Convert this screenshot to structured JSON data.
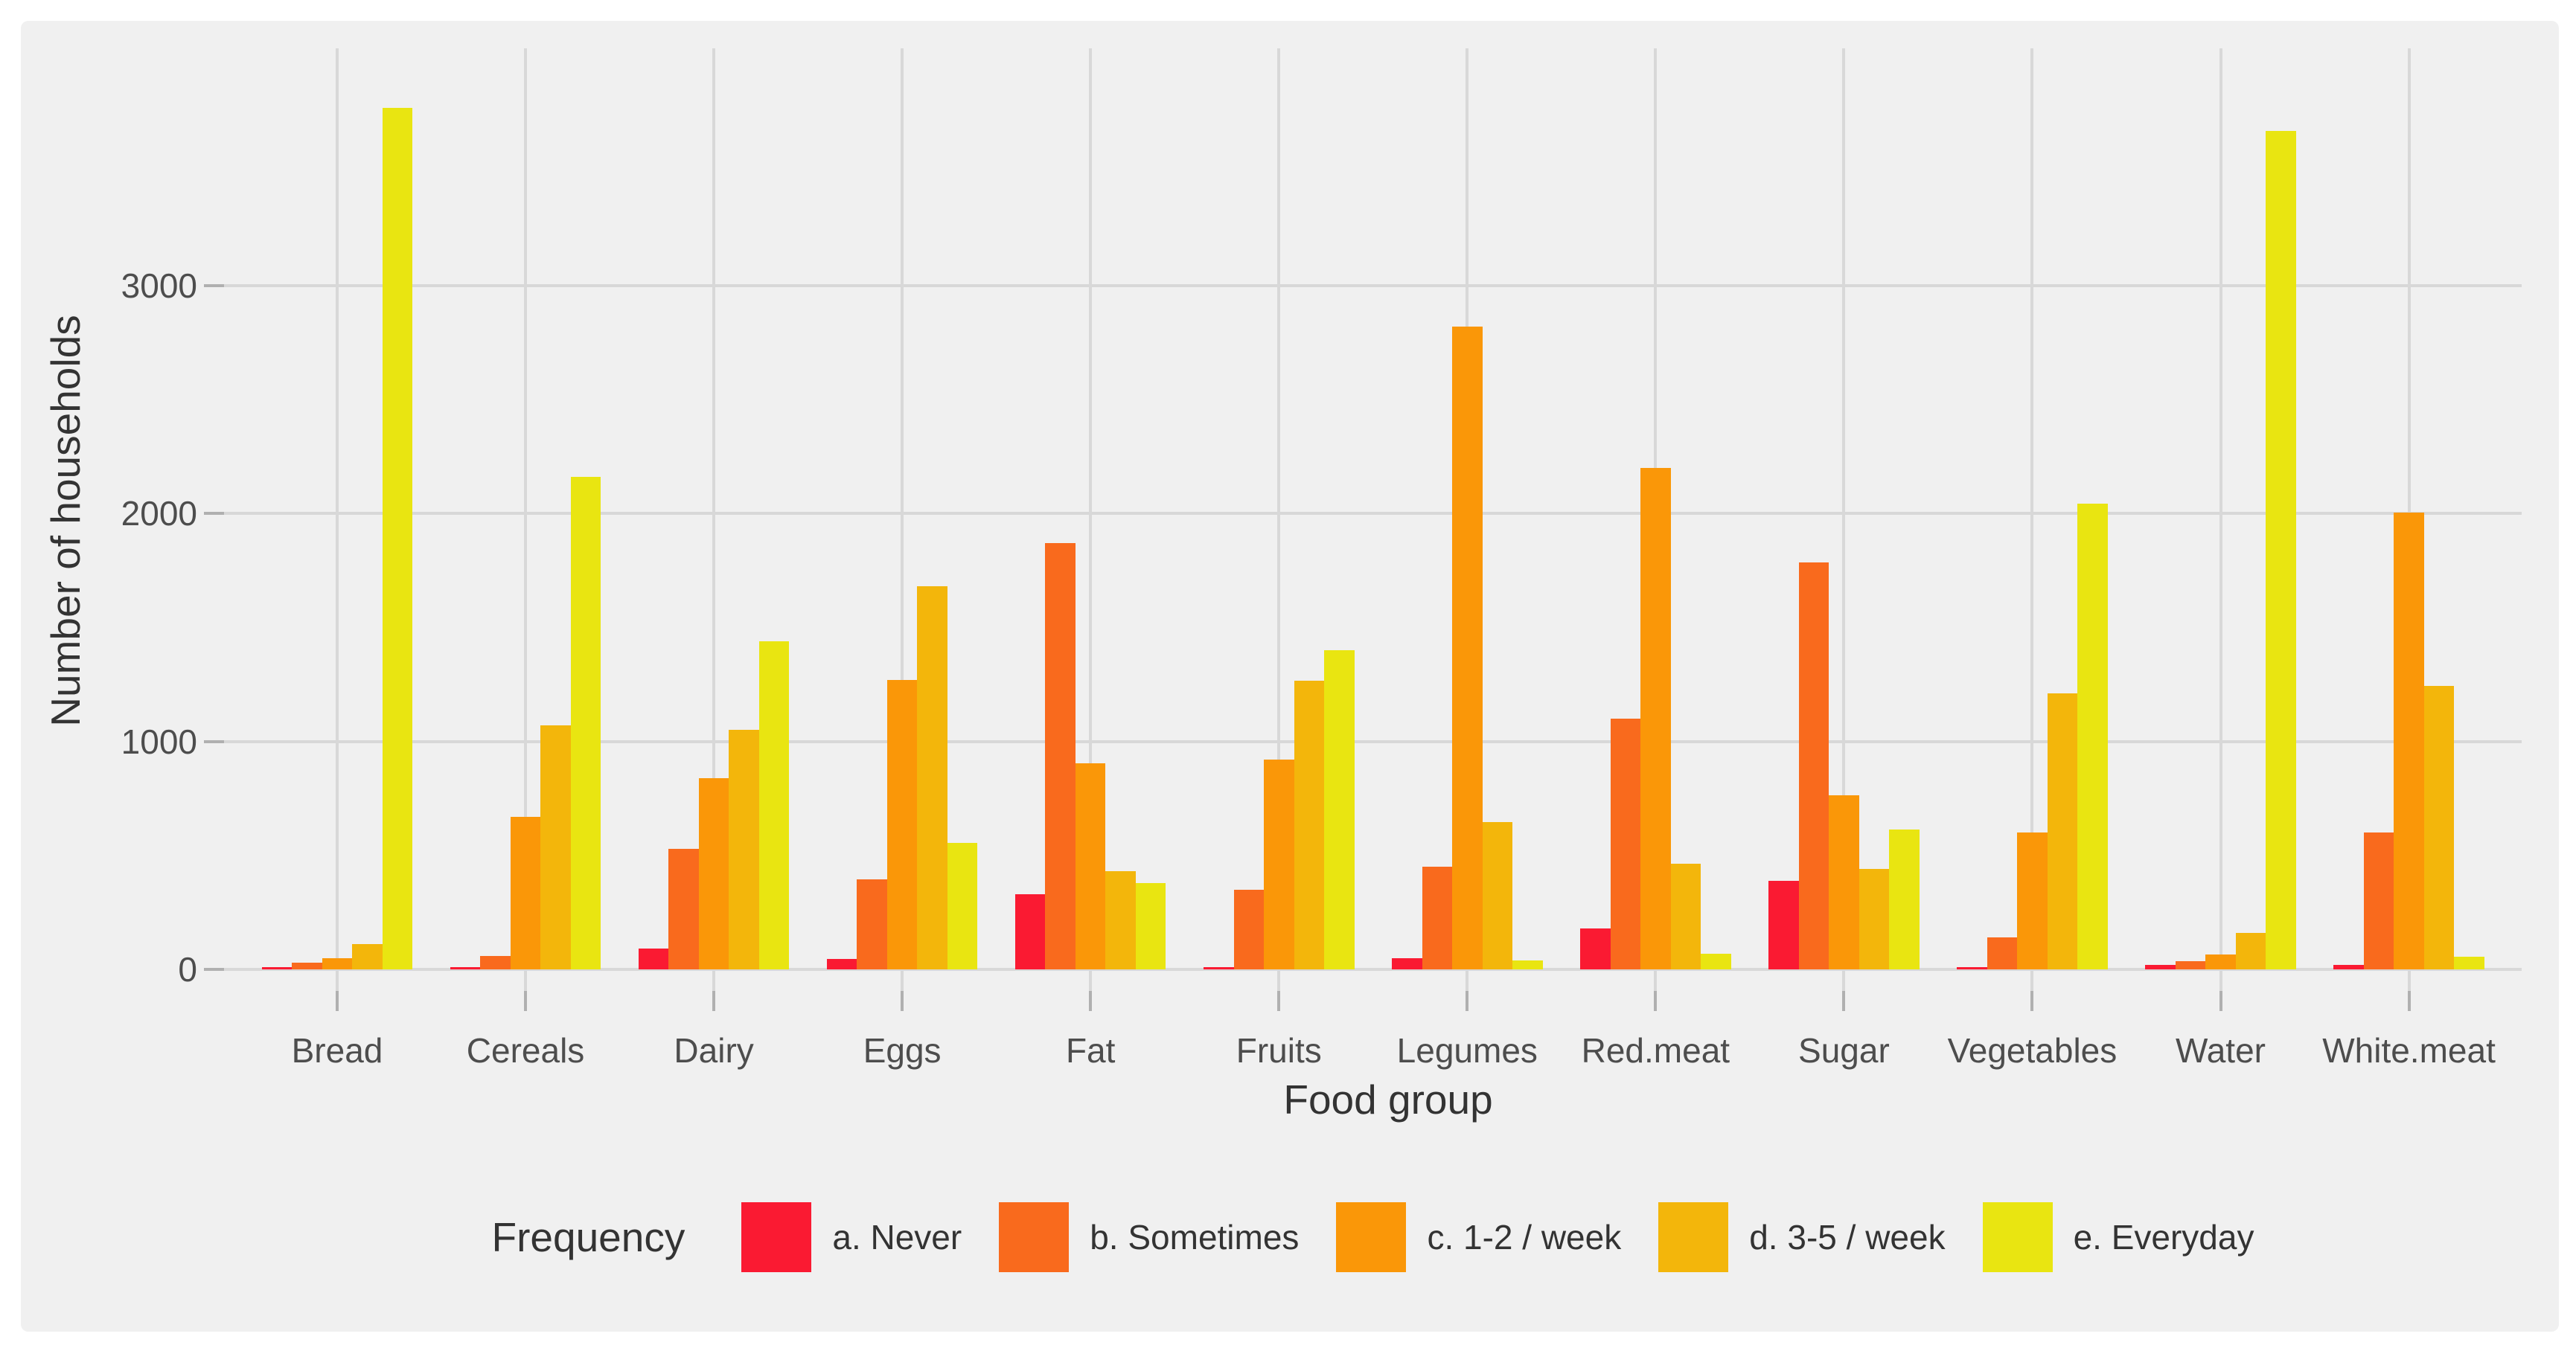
{
  "chart_data": {
    "type": "bar",
    "grouping": "dodged",
    "title": "",
    "xlabel": "Food group",
    "ylabel": "Number of households",
    "legend_title": "Frequency",
    "legend_position": "bottom",
    "grid": true,
    "ylim": [
      0,
      4040
    ],
    "yticks": [
      0,
      1000,
      2000,
      3000
    ],
    "ytick_labels": [
      "0",
      "1000",
      "2000",
      "3000"
    ],
    "categories": [
      "Bread",
      "Cereals",
      "Dairy",
      "Eggs",
      "Fat",
      "Fruits",
      "Legumes",
      "Red.meat",
      "Sugar",
      "Vegetables",
      "Water",
      "White.meat"
    ],
    "series": [
      {
        "name": "a. Never",
        "color": "#FA1A32",
        "values": [
          10,
          10,
          90,
          45,
          330,
          10,
          50,
          180,
          390,
          10,
          20,
          20
        ]
      },
      {
        "name": "b. Sometimes",
        "color": "#F96A1D",
        "values": [
          30,
          60,
          530,
          395,
          1870,
          350,
          450,
          1100,
          1785,
          140,
          35,
          600
        ]
      },
      {
        "name": "c. 1-2 / week",
        "color": "#FA9708",
        "values": [
          50,
          670,
          840,
          1270,
          905,
          920,
          2820,
          2200,
          765,
          600,
          65,
          2005
        ]
      },
      {
        "name": "d. 3-5 / week",
        "color": "#F3B60B",
        "values": [
          110,
          1070,
          1050,
          1680,
          430,
          1265,
          645,
          465,
          440,
          1210,
          160,
          1245
        ]
      },
      {
        "name": "e. Everyday",
        "color": "#E9E511",
        "values": [
          3780,
          2160,
          1440,
          555,
          380,
          1400,
          40,
          70,
          615,
          2045,
          3680,
          55
        ]
      }
    ],
    "colors": {
      "page_background": "#FFFFFF",
      "panel_background": "#F0F0F0",
      "gridline": "#D8D8D8",
      "tick_mark": "#333333",
      "tick_label": "#4D4D4D",
      "axis_title": "#333333",
      "legend_text": "#333333"
    }
  }
}
